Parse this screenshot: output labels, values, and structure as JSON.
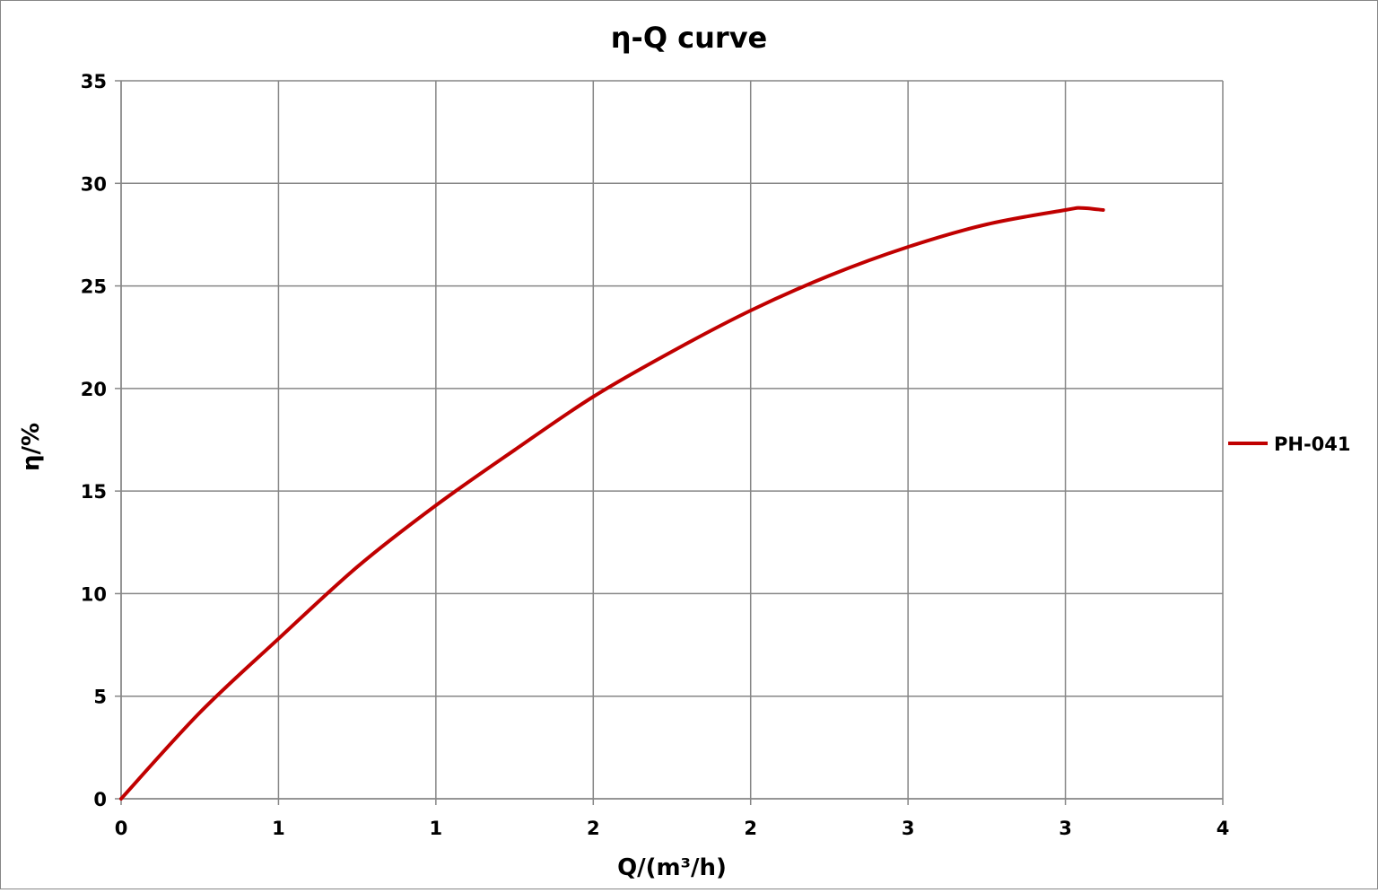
{
  "chart_data": {
    "type": "line",
    "title": "η-Q  curve",
    "xlabel": "Q/(m³/h)",
    "ylabel": "η/%",
    "xlim": [
      0,
      3.5
    ],
    "ylim": [
      0,
      35
    ],
    "x_ticks": [
      {
        "value": 0,
        "label": "0"
      },
      {
        "value": 0.5,
        "label": "1"
      },
      {
        "value": 1.0,
        "label": "1"
      },
      {
        "value": 1.5,
        "label": "2"
      },
      {
        "value": 2.0,
        "label": "2"
      },
      {
        "value": 2.5,
        "label": "3"
      },
      {
        "value": 3.0,
        "label": "3"
      },
      {
        "value": 3.5,
        "label": "4"
      }
    ],
    "y_ticks": [
      0,
      5,
      10,
      15,
      20,
      25,
      30,
      35
    ],
    "grid": true,
    "legend_position": "right",
    "series": [
      {
        "name": "PH-041",
        "color": "#c00000",
        "x": [
          0,
          0.25,
          0.5,
          0.75,
          1.0,
          1.25,
          1.5,
          1.75,
          2.0,
          2.25,
          2.5,
          2.75,
          3.0,
          3.05,
          3.12
        ],
        "y": [
          0,
          4.2,
          7.8,
          11.3,
          14.3,
          17.0,
          19.6,
          21.8,
          23.8,
          25.5,
          26.9,
          28.0,
          28.7,
          28.8,
          28.7
        ]
      }
    ]
  }
}
